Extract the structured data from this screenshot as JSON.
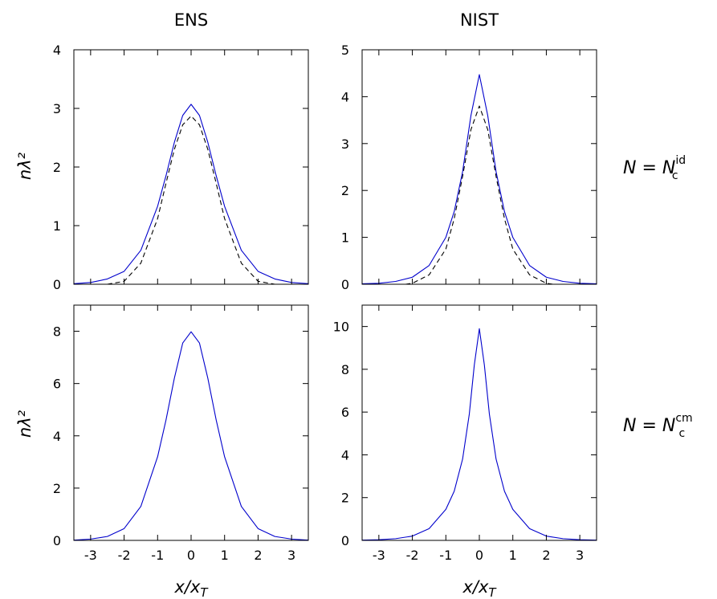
{
  "column_titles": [
    "ENS",
    "NIST"
  ],
  "y_axis_label": "nλ²",
  "x_axis_label": "x/x_T",
  "row_labels": [
    {
      "lhs": "N = N",
      "sub": "c",
      "sup": "id"
    },
    {
      "lhs": "N = N",
      "sub": "c",
      "sup": "cm"
    }
  ],
  "colors": {
    "model": "#0000cc",
    "reference": "#000000"
  },
  "chart_data": [
    {
      "type": "line",
      "panel": "ENS, N = N_c^id",
      "row": 0,
      "col": 0,
      "xlim": [
        -3.5,
        3.5
      ],
      "ylim": [
        0,
        4
      ],
      "xticks": [
        -3,
        -2,
        -1,
        0,
        1,
        2,
        3
      ],
      "yticks": [
        0,
        1,
        2,
        3,
        4
      ],
      "show_x_tick_labels": false,
      "grid": false,
      "series": [
        {
          "style": "solid",
          "color": "#0000cc",
          "x": [
            -3.5,
            -3,
            -2.5,
            -2,
            -1.5,
            -1,
            -0.75,
            -0.5,
            -0.25,
            0,
            0.25,
            0.5,
            0.75,
            1,
            1.5,
            2,
            2.5,
            3,
            3.5
          ],
          "y": [
            0.01,
            0.03,
            0.09,
            0.22,
            0.58,
            1.33,
            1.85,
            2.42,
            2.88,
            3.07,
            2.88,
            2.42,
            1.85,
            1.33,
            0.58,
            0.22,
            0.09,
            0.03,
            0.01
          ]
        },
        {
          "style": "dashed",
          "color": "#000000",
          "x": [
            -2.5,
            -2,
            -1.5,
            -1,
            -0.75,
            -0.5,
            -0.25,
            0,
            0.25,
            0.5,
            0.75,
            1,
            1.5,
            2,
            2.5
          ],
          "y": [
            0.0,
            0.05,
            0.36,
            1.12,
            1.72,
            2.3,
            2.72,
            2.87,
            2.72,
            2.3,
            1.72,
            1.12,
            0.36,
            0.05,
            0.0
          ]
        }
      ]
    },
    {
      "type": "line",
      "panel": "NIST, N = N_c^id",
      "row": 0,
      "col": 1,
      "xlim": [
        -3.5,
        3.5
      ],
      "ylim": [
        0,
        5
      ],
      "xticks": [
        -3,
        -2,
        -1,
        0,
        1,
        2,
        3
      ],
      "yticks": [
        0,
        1,
        2,
        3,
        4,
        5
      ],
      "show_x_tick_labels": false,
      "grid": false,
      "series": [
        {
          "style": "solid",
          "color": "#0000cc",
          "x": [
            -3.5,
            -3,
            -2.5,
            -2,
            -1.5,
            -1,
            -0.75,
            -0.5,
            -0.25,
            0,
            0.25,
            0.5,
            0.75,
            1,
            1.5,
            2,
            2.5,
            3,
            3.5
          ],
          "y": [
            0.01,
            0.02,
            0.06,
            0.15,
            0.4,
            1.0,
            1.55,
            2.4,
            3.6,
            4.47,
            3.6,
            2.4,
            1.55,
            1.0,
            0.4,
            0.15,
            0.06,
            0.02,
            0.01
          ]
        },
        {
          "style": "dashed",
          "color": "#000000",
          "x": [
            -2.2,
            -2,
            -1.5,
            -1,
            -0.75,
            -0.5,
            -0.25,
            0,
            0.25,
            0.5,
            0.75,
            1,
            1.5,
            2,
            2.2
          ],
          "y": [
            0.0,
            0.02,
            0.2,
            0.75,
            1.4,
            2.3,
            3.3,
            3.8,
            3.3,
            2.3,
            1.4,
            0.75,
            0.2,
            0.02,
            0.0
          ]
        }
      ]
    },
    {
      "type": "line",
      "panel": "ENS, N = N_c^cm",
      "row": 1,
      "col": 0,
      "xlim": [
        -3.5,
        3.5
      ],
      "ylim": [
        0,
        9
      ],
      "xticks": [
        -3,
        -2,
        -1,
        0,
        1,
        2,
        3
      ],
      "yticks": [
        0,
        2,
        4,
        6,
        8
      ],
      "show_x_tick_labels": true,
      "grid": false,
      "series": [
        {
          "style": "solid",
          "color": "#0000cc",
          "x": [
            -3.5,
            -3,
            -2.5,
            -2,
            -1.5,
            -1,
            -0.75,
            -0.5,
            -0.25,
            0,
            0.25,
            0.5,
            0.75,
            1,
            1.5,
            2,
            2.5,
            3,
            3.5
          ],
          "y": [
            0.01,
            0.05,
            0.15,
            0.45,
            1.3,
            3.2,
            4.6,
            6.2,
            7.55,
            7.98,
            7.55,
            6.2,
            4.6,
            3.2,
            1.3,
            0.45,
            0.15,
            0.05,
            0.01
          ]
        }
      ]
    },
    {
      "type": "line",
      "panel": "NIST, N = N_c^cm",
      "row": 1,
      "col": 1,
      "xlim": [
        -3.5,
        3.5
      ],
      "ylim": [
        0,
        11
      ],
      "xticks": [
        -3,
        -2,
        -1,
        0,
        1,
        2,
        3
      ],
      "yticks": [
        0,
        2,
        4,
        6,
        8,
        10
      ],
      "show_x_tick_labels": true,
      "grid": false,
      "series": [
        {
          "style": "solid",
          "color": "#0000cc",
          "x": [
            -3.5,
            -3,
            -2.5,
            -2,
            -1.5,
            -1,
            -0.75,
            -0.5,
            -0.3,
            -0.15,
            0,
            0.15,
            0.3,
            0.5,
            0.75,
            1,
            1.5,
            2,
            2.5,
            3,
            3.5
          ],
          "y": [
            0.01,
            0.03,
            0.08,
            0.2,
            0.55,
            1.45,
            2.3,
            3.8,
            5.9,
            8.2,
            9.9,
            8.2,
            5.9,
            3.8,
            2.3,
            1.45,
            0.55,
            0.2,
            0.08,
            0.03,
            0.01
          ]
        }
      ]
    }
  ]
}
